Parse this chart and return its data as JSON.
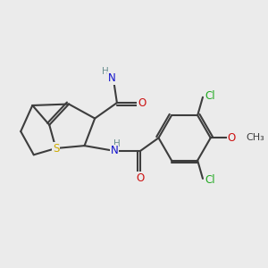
{
  "bg": "#ebebeb",
  "bond_color": "#3d3d3d",
  "lw": 1.5,
  "fs": 8.5,
  "colors": {
    "H": "#6b9090",
    "N": "#1010cc",
    "O": "#cc1010",
    "S": "#ccaa00",
    "Cl": "#22aa22",
    "C": "#3d3d3d"
  },
  "xlim": [
    0,
    10
  ],
  "ylim": [
    0,
    10
  ]
}
